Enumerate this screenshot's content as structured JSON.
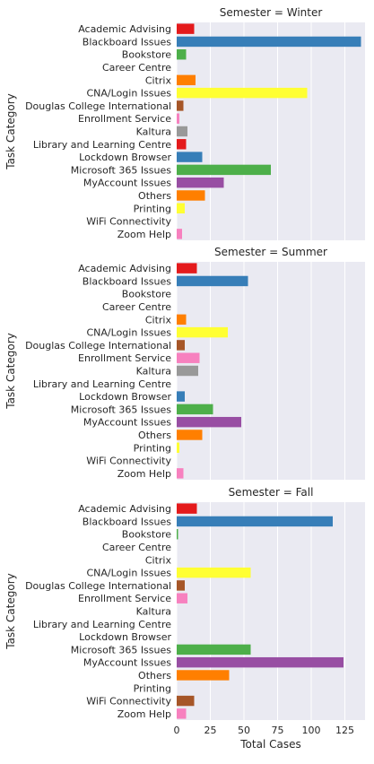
{
  "chart_data": {
    "type": "bar",
    "orientation": "horizontal",
    "facet_variable": "Semester",
    "ylabel": "Task Category",
    "xlabel": "Total Cases",
    "xlim": [
      0,
      140
    ],
    "xticks": [
      0,
      25,
      50,
      75,
      100,
      125
    ],
    "grid": true,
    "categories": [
      "Academic Advising",
      "Blackboard Issues",
      "Bookstore",
      "Career Centre",
      "Citrix",
      "CNA/Login Issues",
      "Douglas College International",
      "Enrollment Service",
      "Kaltura",
      "Library and Learning Centre",
      "Lockdown Browser",
      "Microsoft 365 Issues",
      "MyAccount Issues",
      "Others",
      "Printing",
      "WiFi Connectivity",
      "Zoom Help"
    ],
    "colors": [
      "#e41a1c",
      "#377eb8",
      "#4daf4a",
      "#984ea3",
      "#ff7f00",
      "#ffff33",
      "#a65628",
      "#f781bf",
      "#999999",
      "#e41a1c",
      "#377eb8",
      "#4daf4a",
      "#984ea3",
      "#ff7f00",
      "#ffff33",
      "#a65628",
      "#f781bf"
    ],
    "panels": [
      {
        "title": "Semester = Winter",
        "values": [
          13,
          137,
          7,
          0,
          14,
          97,
          5,
          2,
          8,
          7,
          19,
          70,
          35,
          21,
          6,
          0,
          4
        ]
      },
      {
        "title": "Semester = Summer",
        "values": [
          15,
          53,
          0,
          0,
          7,
          38,
          6,
          17,
          16,
          0,
          6,
          27,
          48,
          19,
          2,
          0,
          5
        ]
      },
      {
        "title": "Semester = Fall",
        "values": [
          15,
          116,
          1,
          0,
          0,
          55,
          6,
          8,
          0,
          0,
          0,
          55,
          124,
          39,
          0,
          13,
          7
        ]
      }
    ]
  }
}
